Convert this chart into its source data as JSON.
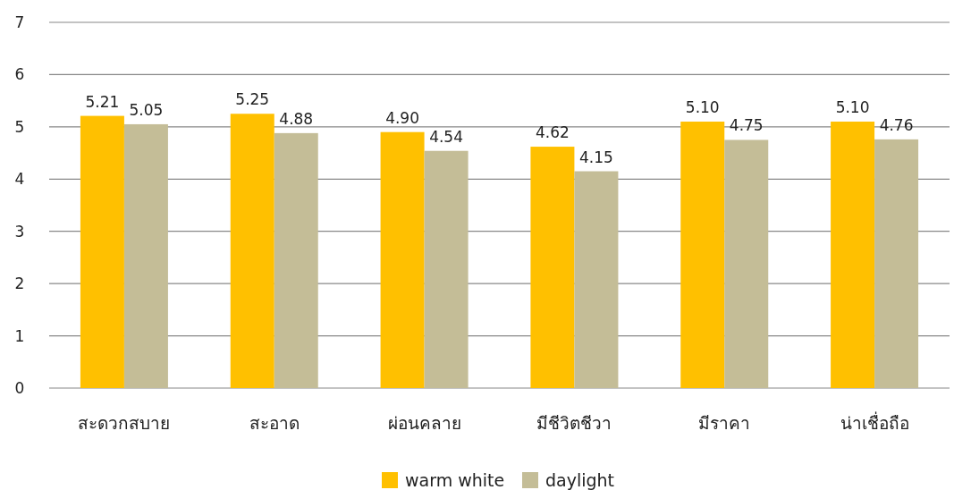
{
  "chart_data": {
    "type": "bar",
    "categories": [
      "สะดวกสบาย",
      "สะอาด",
      "ผ่อนคลาย",
      "มีชีวิตชีวา",
      "มีราคา",
      "น่าเชื่อถือ"
    ],
    "series": [
      {
        "name": "warm white",
        "color": "#ffc000",
        "values": [
          5.21,
          5.25,
          4.9,
          4.62,
          5.1,
          5.1
        ],
        "value_labels": [
          "5.21",
          "5.25",
          "4.90",
          "4.62",
          "5.10",
          "5.10"
        ]
      },
      {
        "name": "daylight",
        "color": "#c4bd97",
        "values": [
          5.05,
          4.88,
          4.54,
          4.15,
          4.75,
          4.76
        ],
        "value_labels": [
          "5.05",
          "4.88",
          "4.54",
          "4.15",
          "4.75",
          "4.76"
        ]
      }
    ],
    "ylim": [
      0,
      7
    ],
    "yticks": [
      0,
      1,
      2,
      3,
      4,
      5,
      6,
      7
    ],
    "grid": "y",
    "legend": "bottom"
  }
}
